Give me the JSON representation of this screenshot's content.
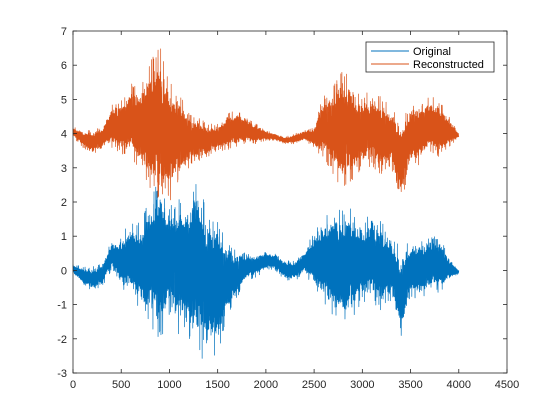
{
  "chart_data": {
    "type": "line",
    "title": "",
    "xlabel": "",
    "ylabel": "",
    "xlim": [
      0,
      4500
    ],
    "ylim": [
      -3,
      7
    ],
    "xticks": [
      0,
      500,
      1000,
      1500,
      2000,
      2500,
      3000,
      3500,
      4000,
      4500
    ],
    "yticks": [
      -3,
      -2,
      -1,
      0,
      1,
      2,
      3,
      4,
      5,
      6,
      7
    ],
    "xtick_labels": [
      "0",
      "500",
      "1000",
      "1500",
      "2000",
      "2500",
      "3000",
      "3500",
      "4000",
      "4500"
    ],
    "ytick_labels": [
      "-3",
      "-2",
      "-1",
      "0",
      "1",
      "2",
      "3",
      "4",
      "5",
      "6",
      "7"
    ],
    "grid": false,
    "legend_position": "top-right",
    "series": [
      {
        "name": "Original",
        "color": "#0072BD",
        "offset": 0,
        "x_range": [
          1,
          4000
        ],
        "n_points": 4000,
        "envelope_x": [
          0,
          100,
          200,
          300,
          400,
          500,
          600,
          700,
          800,
          900,
          1000,
          1100,
          1200,
          1300,
          1400,
          1500,
          1600,
          1700,
          1800,
          1900,
          2000,
          2100,
          2200,
          2300,
          2400,
          2500,
          2600,
          2700,
          2800,
          2900,
          3000,
          3100,
          3200,
          3300,
          3400,
          3500,
          3600,
          3700,
          3800,
          3900,
          4000
        ],
        "envelope_max": [
          0.2,
          0.1,
          0.1,
          0.2,
          0.9,
          1.0,
          1.5,
          1.4,
          2.2,
          2.8,
          1.9,
          2.2,
          2.4,
          2.9,
          1.8,
          1.6,
          0.9,
          0.6,
          0.5,
          0.5,
          0.6,
          0.5,
          0.3,
          0.3,
          0.6,
          1.2,
          1.6,
          1.9,
          1.8,
          1.8,
          1.2,
          1.9,
          1.4,
          1.1,
          0.6,
          0.9,
          0.9,
          1.0,
          1.0,
          0.4,
          0.0
        ],
        "envelope_min": [
          -0.1,
          -0.4,
          -0.6,
          -0.5,
          0.0,
          -0.6,
          -0.8,
          -1.2,
          -1.6,
          -2.1,
          -1.4,
          -1.9,
          -2.0,
          -2.5,
          -2.8,
          -2.4,
          -1.5,
          -0.8,
          -0.3,
          -0.2,
          0.0,
          0.0,
          -0.3,
          -0.3,
          -0.1,
          -0.5,
          -1.0,
          -1.4,
          -1.7,
          -1.4,
          -0.9,
          -1.0,
          -1.2,
          -0.9,
          -2.0,
          -0.8,
          -0.9,
          -0.6,
          -0.7,
          -0.3,
          -0.1
        ]
      },
      {
        "name": "Reconstructed",
        "color": "#D95319",
        "offset": 4,
        "x_range": [
          1,
          4000
        ],
        "n_points": 4000,
        "envelope_x": [
          0,
          100,
          200,
          300,
          400,
          500,
          600,
          700,
          800,
          900,
          1000,
          1100,
          1200,
          1300,
          1400,
          1500,
          1600,
          1700,
          1800,
          1900,
          2000,
          2100,
          2200,
          2300,
          2400,
          2500,
          2600,
          2700,
          2800,
          2900,
          3000,
          3100,
          3200,
          3300,
          3400,
          3500,
          3600,
          3700,
          3800,
          3900,
          4000
        ],
        "envelope_max": [
          4.2,
          4.1,
          4.1,
          4.2,
          4.9,
          5.0,
          5.5,
          5.4,
          6.2,
          6.6,
          5.5,
          5.2,
          4.6,
          4.5,
          4.3,
          4.3,
          4.6,
          4.7,
          4.5,
          4.3,
          4.1,
          4.0,
          3.9,
          4.0,
          4.1,
          4.2,
          5.2,
          5.5,
          5.9,
          5.6,
          5.0,
          5.4,
          5.1,
          4.8,
          4.6,
          4.9,
          4.9,
          5.1,
          5.0,
          4.5,
          4.0
        ],
        "envelope_min": [
          3.9,
          3.6,
          3.4,
          3.5,
          3.6,
          3.4,
          3.2,
          2.9,
          2.4,
          1.9,
          2.0,
          2.6,
          3.0,
          3.2,
          3.3,
          3.5,
          3.5,
          3.6,
          3.7,
          3.7,
          3.8,
          3.8,
          3.7,
          3.7,
          3.8,
          3.6,
          3.2,
          2.8,
          2.3,
          2.6,
          3.0,
          3.0,
          2.8,
          3.0,
          1.9,
          3.0,
          3.1,
          3.4,
          3.3,
          3.6,
          3.9
        ]
      }
    ]
  }
}
